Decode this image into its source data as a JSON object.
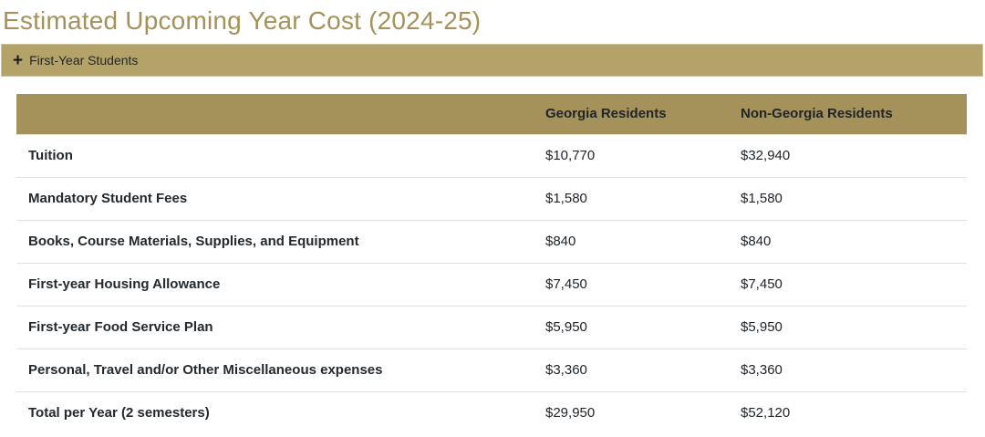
{
  "page": {
    "title": "Estimated Upcoming Year Cost (2024-25)"
  },
  "accordion": {
    "icon": "plus-icon",
    "icon_glyph": "+",
    "label": "First-Year Students"
  },
  "table": {
    "columns": [
      "",
      "Georgia Residents",
      "Non-Georgia Residents"
    ],
    "rows": [
      {
        "label": "Tuition",
        "georgia": "$10,770",
        "non_georgia": "$32,940"
      },
      {
        "label": "Mandatory Student Fees",
        "georgia": "$1,580",
        "non_georgia": "$1,580"
      },
      {
        "label": "Books, Course Materials, Supplies, and Equipment",
        "georgia": "$840",
        "non_georgia": "$840"
      },
      {
        "label": "First-year Housing Allowance",
        "georgia": "$7,450",
        "non_georgia": "$7,450"
      },
      {
        "label": "First-year Food Service Plan",
        "georgia": "$5,950",
        "non_georgia": "$5,950"
      },
      {
        "label": "Personal, Travel and/or Other Miscellaneous expenses",
        "georgia": "$3,360",
        "non_georgia": "$3,360"
      },
      {
        "label": "Total per Year (2 semesters)",
        "georgia": "$29,950",
        "non_georgia": "$52,120"
      }
    ]
  },
  "colors": {
    "title_gold": "#a4925a",
    "accordion_bg": "#b3a369",
    "accordion_border": "#cdc39b",
    "table_header_bg": "#a4925a",
    "text_dark": "#212529",
    "divider": "#dee2e6"
  }
}
